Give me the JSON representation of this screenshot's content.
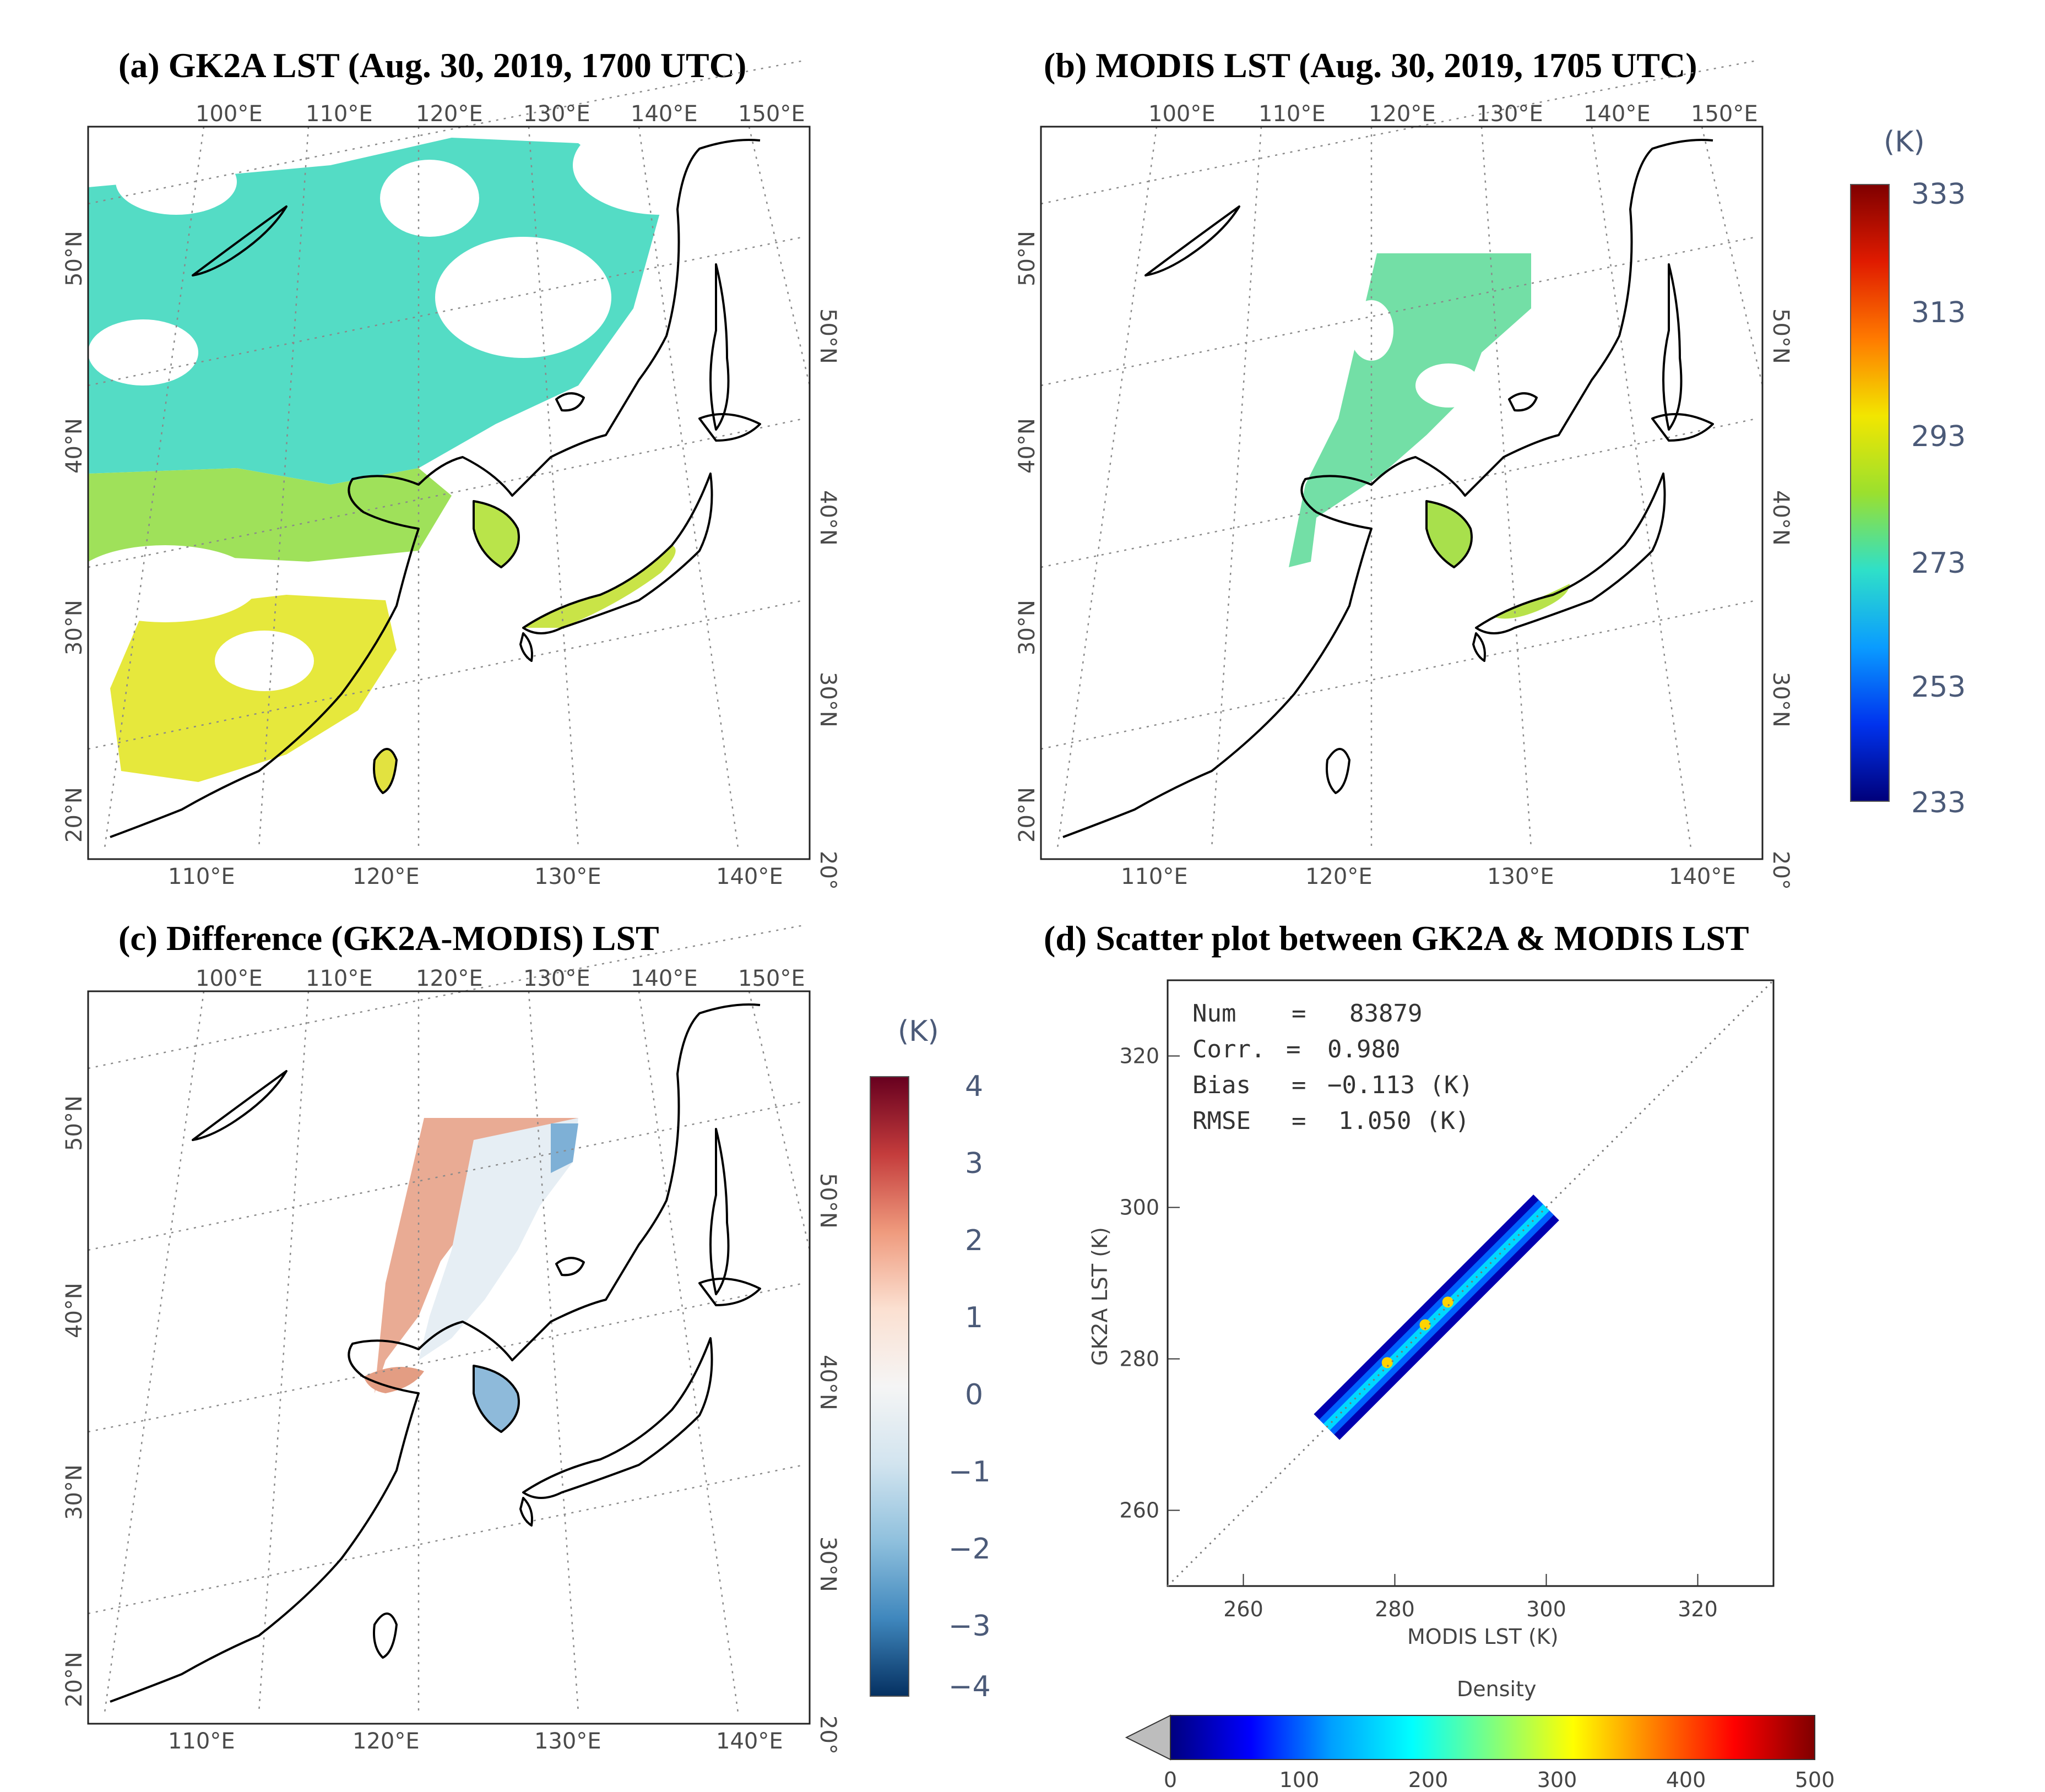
{
  "colors": {
    "coast": "#000000",
    "cloud": "#ffffff",
    "lst_cool": "#4fd9c8",
    "lst_mid": "#8ee06a",
    "lst_warm": "#e8e83a",
    "diff_pos": "#e9a48c",
    "diff_neg": "#5b93c6",
    "diff_zero": "#f3efee",
    "dens_low": "#001a9a",
    "dens_high": "#ffd400"
  },
  "panels": [
    {
      "id": "a",
      "title": "(a) GK2A LST (Aug. 30, 2019, 1700 UTC)",
      "top_lon_labels": [
        "100°E",
        "110°E",
        "120°E",
        "130°E",
        "140°E",
        "150°E"
      ],
      "bottom_lon_labels": [
        "110°E",
        "120°E",
        "130°E",
        "140°E"
      ],
      "left_lat_labels": [
        "50°N",
        "40°N",
        "30°N",
        "20°N"
      ],
      "right_lat_labels": [
        "50°N",
        "40°N",
        "30°N",
        "20°"
      ]
    },
    {
      "id": "b",
      "title": "(b) MODIS LST (Aug. 30, 2019, 1705 UTC)",
      "top_lon_labels": [
        "100°E",
        "110°E",
        "120°E",
        "130°E",
        "140°E",
        "150°E"
      ],
      "bottom_lon_labels": [
        "110°E",
        "120°E",
        "130°E",
        "140°E"
      ],
      "left_lat_labels": [
        "50°N",
        "40°N",
        "30°N",
        "20°N"
      ],
      "right_lat_labels": [
        "50°N",
        "40°N",
        "30°N",
        "20°"
      ]
    },
    {
      "id": "c",
      "title": "(c) Difference (GK2A-MODIS) LST",
      "top_lon_labels": [
        "100°E",
        "110°E",
        "120°E",
        "130°E",
        "140°E",
        "150°E"
      ],
      "bottom_lon_labels": [
        "110°E",
        "120°E",
        "130°E",
        "140°E"
      ],
      "left_lat_labels": [
        "50°N",
        "40°N",
        "30°N",
        "20°N"
      ],
      "right_lat_labels": [
        "50°N",
        "40°N",
        "30°N",
        "20°"
      ]
    }
  ],
  "lst_colorbar": {
    "unit": "(K)",
    "ticks": [
      "333",
      "313",
      "293",
      "273",
      "253",
      "233"
    ],
    "stops": [
      "#7f0000",
      "#e01b00",
      "#ff7a00",
      "#f2e600",
      "#9be02e",
      "#2fe0c8",
      "#0a9cff",
      "#0033ee",
      "#00007a"
    ]
  },
  "diff_colorbar": {
    "unit": "(K)",
    "ticks": [
      "4",
      "3",
      "2",
      "1",
      "0",
      "−1",
      "−2",
      "−3",
      "−4"
    ],
    "stops": [
      "#67001f",
      "#c43c3c",
      "#ef9a7d",
      "#fbe0d1",
      "#f5f5f5",
      "#d2e4ef",
      "#8fc0dd",
      "#3f87bd",
      "#053061"
    ]
  },
  "chart_data": {
    "type": "scatter",
    "title": "(d) Scatter plot between GK2A & MODIS LST",
    "xlabel": "MODIS LST (K)",
    "ylabel": "GK2A LST (K)",
    "xlim": [
      250,
      330
    ],
    "ylim": [
      250,
      330
    ],
    "x_ticks": [
      260,
      280,
      300,
      320
    ],
    "y_ticks": [
      260,
      280,
      300,
      320
    ],
    "stats": [
      {
        "label": "Num",
        "eq": "=",
        "value": "83879"
      },
      {
        "label": "Corr.",
        "eq": "=",
        "value": "0.980"
      },
      {
        "label": "Bias",
        "eq": "=",
        "value": "−0.113 (K)"
      },
      {
        "label": "RMSE",
        "eq": "=",
        "value": "1.050 (K)"
      }
    ],
    "one_to_one_line": [
      [
        250,
        250
      ],
      [
        330,
        330
      ]
    ],
    "cluster": {
      "x_range": [
        270,
        300
      ],
      "center": [
        285,
        285
      ],
      "core": [
        [
          279,
          279.5
        ],
        [
          284,
          284.5
        ],
        [
          287,
          287.5
        ]
      ]
    },
    "density_colorbar": {
      "label": "Density",
      "ticks": [
        0,
        100,
        200,
        300,
        400,
        500
      ],
      "stops": [
        "#00007f",
        "#0000ff",
        "#00a0ff",
        "#00ffff",
        "#7fff7f",
        "#ffff00",
        "#ff7f00",
        "#ff0000",
        "#7f0000"
      ]
    }
  }
}
